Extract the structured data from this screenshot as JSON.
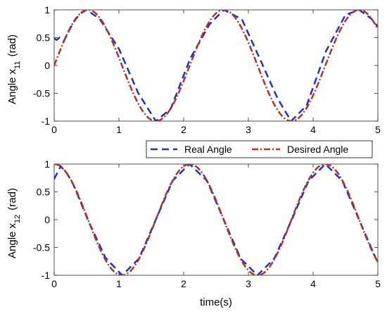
{
  "chart_data": [
    {
      "type": "line",
      "title": "",
      "xlabel": "",
      "ylabel": "Angle x",
      "ylabel_subscript": "11",
      "ylabel_unit": "(rad)",
      "xlim": [
        0,
        5
      ],
      "ylim": [
        -1,
        1
      ],
      "xticks": [
        "0",
        "1",
        "2",
        "3",
        "4",
        "5"
      ],
      "yticks": [
        "1",
        "0.5",
        "0",
        "-0.5",
        "-1"
      ],
      "grid": false,
      "series": [
        {
          "name": "Real Angle",
          "color": "#1f2fd6",
          "style": "dashed",
          "x": [
            0,
            0.02,
            0.04,
            0.06,
            0.08,
            0.1,
            0.15,
            0.2,
            0.3,
            0.4,
            0.5,
            0.7,
            1.0,
            1.3,
            1.57,
            1.8,
            2.1,
            2.4,
            2.62,
            2.9,
            3.2,
            3.45,
            3.66,
            3.9,
            4.2,
            4.5,
            4.71,
            4.9,
            5.0
          ],
          "y": [
            0.49,
            0.47,
            0.46,
            0.48,
            0.5,
            0.47,
            0.44,
            0.56,
            0.78,
            0.93,
            1.0,
            0.84,
            0.3,
            -0.5,
            -1.0,
            -0.78,
            0.12,
            0.74,
            1.0,
            0.83,
            0.06,
            -0.59,
            -1.0,
            -0.72,
            0.26,
            0.91,
            1.0,
            0.84,
            0.7
          ]
        },
        {
          "name": "Desired Angle",
          "color": "#b8311f",
          "style": "dashdot",
          "function": "sin(3t)",
          "x": [
            0,
            0.25,
            0.52,
            0.8,
            1.05,
            1.31,
            1.57,
            1.83,
            2.09,
            2.36,
            2.62,
            2.88,
            3.14,
            3.4,
            3.67,
            3.93,
            4.19,
            4.45,
            4.71,
            4.97,
            5.0
          ],
          "y": [
            0,
            0.68,
            1.0,
            0.68,
            0.0,
            -0.7,
            -1.0,
            -0.7,
            0.0,
            0.7,
            1.0,
            0.7,
            0.0,
            -0.7,
            -1.0,
            -0.7,
            0.0,
            0.7,
            1.0,
            0.72,
            0.65
          ]
        }
      ]
    },
    {
      "type": "line",
      "title": "",
      "xlabel": "time(s)",
      "ylabel": "Angle x",
      "ylabel_subscript": "12",
      "ylabel_unit": "(rad)",
      "xlim": [
        0,
        5
      ],
      "ylim": [
        -1,
        1
      ],
      "xticks": [
        "0",
        "1",
        "2",
        "3",
        "4",
        "5"
      ],
      "yticks": [
        "1",
        "0.5",
        "0",
        "-0.5",
        "-1"
      ],
      "grid": false,
      "series": [
        {
          "name": "Real Angle",
          "color": "#1f2fd6",
          "style": "dashed",
          "x": [
            0,
            0.02,
            0.04,
            0.06,
            0.1,
            0.2,
            0.3,
            0.52,
            0.79,
            1.05,
            1.31,
            1.57,
            1.83,
            2.09,
            2.36,
            2.62,
            2.88,
            3.14,
            3.4,
            3.67,
            3.93,
            4.19,
            4.45,
            4.71,
            4.97,
            5.0
          ],
          "y": [
            0.73,
            0.78,
            0.82,
            0.86,
            0.96,
            0.83,
            0.62,
            0.0,
            -0.68,
            -1.0,
            -0.7,
            0.0,
            0.7,
            1.0,
            0.7,
            0.0,
            -0.7,
            -1.0,
            -0.7,
            0.0,
            0.7,
            1.0,
            0.7,
            0.0,
            -0.7,
            -0.76
          ]
        },
        {
          "name": "Desired Angle",
          "color": "#b8311f",
          "style": "dashdot",
          "function": "cos(3t)",
          "x": [
            0,
            0.26,
            0.52,
            0.79,
            1.05,
            1.31,
            1.57,
            1.83,
            2.09,
            2.36,
            2.62,
            2.88,
            3.14,
            3.4,
            3.67,
            3.93,
            4.19,
            4.45,
            4.71,
            4.97,
            5.0
          ],
          "y": [
            1.0,
            0.7,
            0.0,
            -0.7,
            -1.0,
            -0.7,
            0.0,
            0.7,
            1.0,
            0.7,
            0.0,
            -0.7,
            -1.0,
            -0.7,
            0.0,
            0.7,
            1.0,
            0.7,
            0.0,
            -0.7,
            -0.76
          ]
        }
      ]
    }
  ],
  "legend": {
    "placement": "between-panels-right",
    "entries": [
      {
        "label": "Real Angle",
        "color": "#1f2fd6",
        "style": "dashed"
      },
      {
        "label": "Desired Angle",
        "color": "#b8311f",
        "style": "dashdot"
      }
    ]
  }
}
